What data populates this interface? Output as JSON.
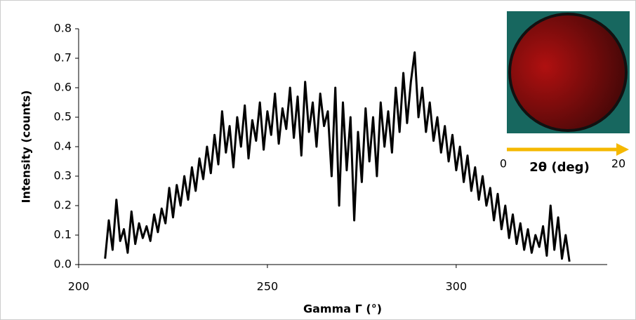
{
  "chart_data": {
    "type": "line",
    "x_label": "Gamma Γ (°)",
    "y_label": "Intensity (counts)",
    "x": [
      207,
      208,
      209,
      210,
      211,
      212,
      213,
      214,
      215,
      216,
      217,
      218,
      219,
      220,
      221,
      222,
      223,
      224,
      225,
      226,
      227,
      228,
      229,
      230,
      231,
      232,
      233,
      234,
      235,
      236,
      237,
      238,
      239,
      240,
      241,
      242,
      243,
      244,
      245,
      246,
      247,
      248,
      249,
      250,
      251,
      252,
      253,
      254,
      255,
      256,
      257,
      258,
      259,
      260,
      261,
      262,
      263,
      264,
      265,
      266,
      267,
      268,
      269,
      270,
      271,
      272,
      273,
      274,
      275,
      276,
      277,
      278,
      279,
      280,
      281,
      282,
      283,
      284,
      285,
      286,
      287,
      288,
      289,
      290,
      291,
      292,
      293,
      294,
      295,
      296,
      297,
      298,
      299,
      300,
      301,
      302,
      303,
      304,
      305,
      306,
      307,
      308,
      309,
      310,
      311,
      312,
      313,
      314,
      315,
      316,
      317,
      318,
      319,
      320,
      321,
      322,
      323,
      324,
      325,
      326,
      327,
      328,
      329,
      330
    ],
    "values": [
      0.02,
      0.15,
      0.05,
      0.22,
      0.08,
      0.12,
      0.04,
      0.18,
      0.07,
      0.14,
      0.09,
      0.13,
      0.08,
      0.17,
      0.11,
      0.19,
      0.14,
      0.26,
      0.16,
      0.27,
      0.2,
      0.3,
      0.22,
      0.33,
      0.25,
      0.36,
      0.29,
      0.4,
      0.31,
      0.44,
      0.34,
      0.52,
      0.38,
      0.47,
      0.33,
      0.5,
      0.4,
      0.54,
      0.36,
      0.49,
      0.42,
      0.55,
      0.39,
      0.52,
      0.44,
      0.58,
      0.41,
      0.53,
      0.46,
      0.6,
      0.43,
      0.57,
      0.37,
      0.62,
      0.45,
      0.55,
      0.4,
      0.58,
      0.47,
      0.52,
      0.3,
      0.6,
      0.2,
      0.55,
      0.32,
      0.5,
      0.15,
      0.45,
      0.28,
      0.53,
      0.35,
      0.5,
      0.3,
      0.55,
      0.4,
      0.52,
      0.38,
      0.6,
      0.45,
      0.65,
      0.48,
      0.62,
      0.72,
      0.5,
      0.6,
      0.45,
      0.55,
      0.42,
      0.5,
      0.38,
      0.47,
      0.35,
      0.44,
      0.32,
      0.4,
      0.28,
      0.37,
      0.25,
      0.33,
      0.22,
      0.3,
      0.2,
      0.26,
      0.15,
      0.24,
      0.12,
      0.2,
      0.09,
      0.17,
      0.07,
      0.14,
      0.05,
      0.12,
      0.04,
      0.1,
      0.06,
      0.13,
      0.03,
      0.2,
      0.05,
      0.16,
      0.02,
      0.1,
      0.01
    ],
    "color": "#000000",
    "xlim": [
      200,
      340
    ],
    "xticks": [
      200,
      250,
      300
    ],
    "ylim": [
      0,
      0.8
    ],
    "yticks": [
      {
        "value": 0,
        "label": "0.0"
      },
      0.1,
      0.2,
      0.3,
      0.4,
      0.5,
      0.6,
      0.7,
      0.8
    ],
    "inset": {
      "start_label": "0",
      "axis_label": "2θ (deg)",
      "end_label": "20"
    }
  }
}
